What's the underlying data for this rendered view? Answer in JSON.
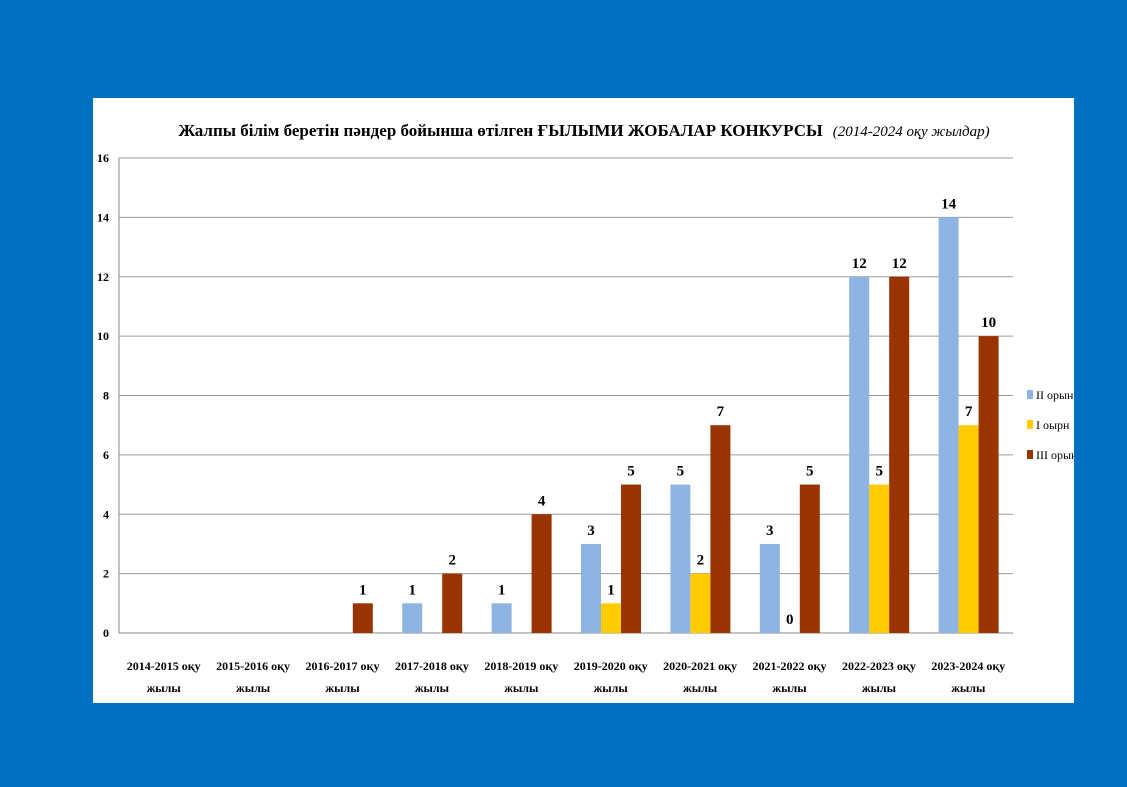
{
  "chart_data": {
    "type": "bar",
    "title": "Жалпы білім беретін пәндер бойынша өтілген ҒЫЛЫМИ ЖОБАЛАР КОНКУРСЫ",
    "subtitle": "(2014-2024 оқу жылдар)",
    "xlabel": "",
    "ylabel": "",
    "ylim": [
      0,
      16
    ],
    "yticks": [
      0,
      2,
      4,
      6,
      8,
      10,
      12,
      14,
      16
    ],
    "grid": true,
    "legend_position": "right",
    "categories": [
      [
        "2014-2015 оқу",
        "жылы"
      ],
      [
        "2015-2016 оқу",
        "жылы"
      ],
      [
        "2016-2017 оқу",
        "жылы"
      ],
      [
        "2017-2018 оқу",
        "жылы"
      ],
      [
        "2018-2019 оқу",
        "жылы"
      ],
      [
        "2019-2020 оқу",
        "жылы"
      ],
      [
        "2020-2021 оқу",
        "жылы"
      ],
      [
        "2021-2022 оқу",
        "жылы"
      ],
      [
        "2022-2023 оқу",
        "жылы"
      ],
      [
        "2023-2024 оқу",
        "жылы"
      ]
    ],
    "series": [
      {
        "name": "II орын",
        "color": "#8eb4e3",
        "values": [
          null,
          null,
          null,
          1,
          1,
          3,
          5,
          3,
          12,
          14
        ]
      },
      {
        "name": "I оырн",
        "color": "#ffcc00",
        "values": [
          null,
          null,
          null,
          null,
          null,
          1,
          2,
          0,
          5,
          7
        ]
      },
      {
        "name": "III орын",
        "color": "#993300",
        "values": [
          null,
          null,
          1,
          2,
          4,
          5,
          7,
          5,
          12,
          10
        ]
      }
    ]
  }
}
